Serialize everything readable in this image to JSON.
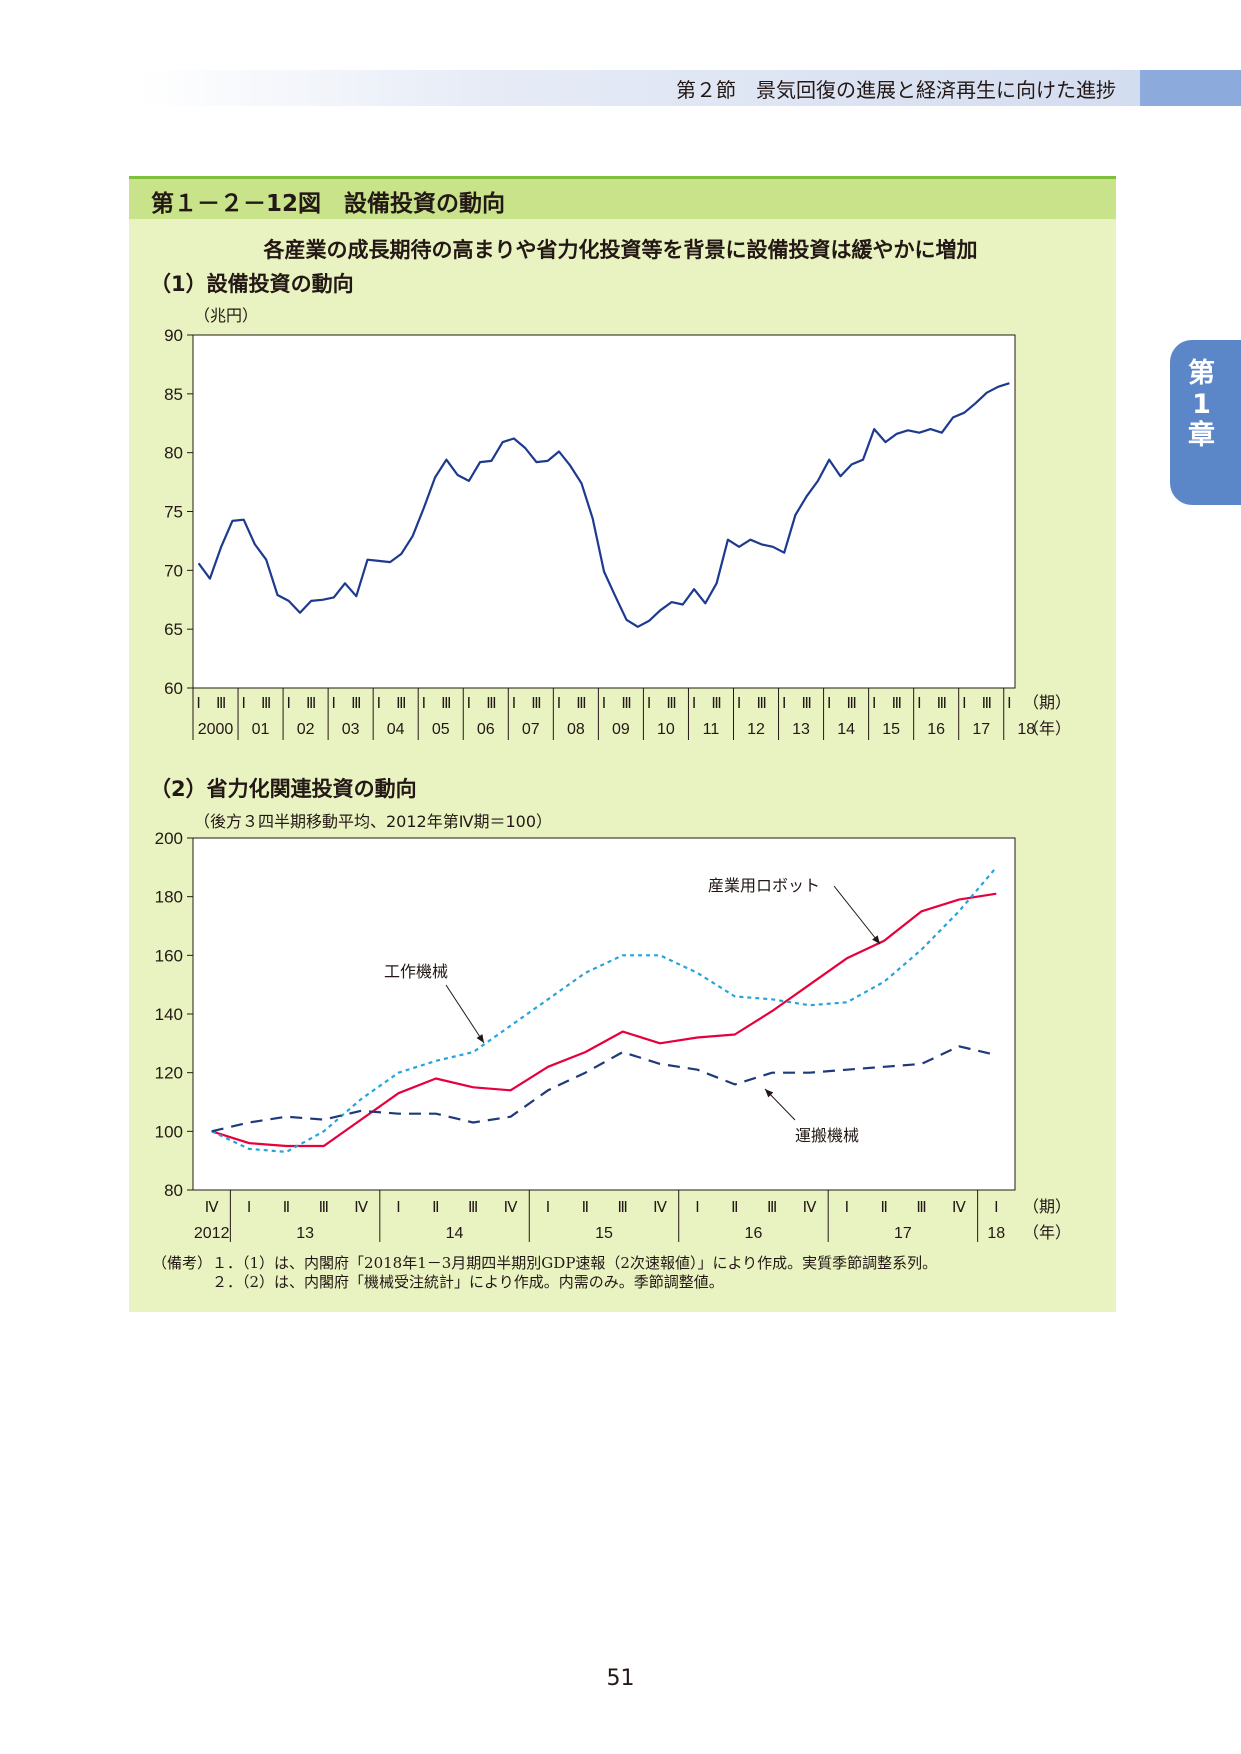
{
  "header": {
    "title": "第２節　景気回復の進展と経済再生に向けた進捗"
  },
  "chapter_tab": {
    "line1": "第",
    "line2": "1",
    "line3": "章"
  },
  "figure": {
    "title": "第１－２－12図　設備投資の動向",
    "subtitle": "各産業の成長期待の高まりや省力化投資等を背景に設備投資は緩やかに増加"
  },
  "section1": {
    "title": "（1）設備投資の動向",
    "unit": "（兆円）"
  },
  "section2": {
    "title": "（2）省力化関連投資の動向",
    "unit": "（後方３四半期移動平均、2012年第Ⅳ期＝100）"
  },
  "notes": [
    "（備考）１．（1）は、内閣府「2018年1－3月期四半期別GDP速報（2次速報値）」により作成。実質季節調整系列。",
    "　　　　２．（2）は、内閣府「機械受注統計」により作成。内需のみ。季節調整値。"
  ],
  "page_number": "51",
  "colors": {
    "blue_line": "#1d3a8f",
    "red_line": "#e6003c",
    "cyan_line": "#27a3dc",
    "navy_dash": "#1f3a7a",
    "title_band": "#c8e38a",
    "figure_bg": "#e9f3c1"
  },
  "chart_data": [
    {
      "type": "line",
      "title": "（1）設備投資の動向",
      "ylabel": "（兆円）",
      "ylim": [
        60,
        90
      ],
      "yticks": [
        60,
        65,
        70,
        75,
        80,
        85,
        90
      ],
      "x_axis_period_label": "（期）",
      "x_axis_year_label": "（年）",
      "period_ticks": [
        "Ⅰ",
        "Ⅲ"
      ],
      "years": [
        "2000",
        "01",
        "02",
        "03",
        "04",
        "05",
        "06",
        "07",
        "08",
        "09",
        "10",
        "11",
        "12",
        "13",
        "14",
        "15",
        "16",
        "17",
        "18"
      ],
      "x_start": "2000Q1",
      "series": [
        {
          "name": "",
          "values": [
            70.6,
            69.3,
            72.0,
            74.2,
            74.3,
            72.2,
            70.9,
            67.9,
            67.4,
            66.4,
            67.4,
            67.5,
            67.7,
            68.9,
            67.8,
            70.9,
            70.8,
            70.7,
            71.4,
            72.9,
            75.3,
            77.9,
            79.4,
            78.1,
            77.6,
            79.2,
            79.3,
            80.9,
            81.2,
            80.4,
            79.2,
            79.3,
            80.1,
            78.9,
            77.4,
            74.4,
            69.9,
            67.8,
            65.8,
            65.2,
            65.7,
            66.6,
            67.3,
            67.1,
            68.4,
            67.2,
            68.9,
            72.6,
            72.0,
            72.6,
            72.2,
            72.0,
            71.5,
            74.7,
            76.3,
            77.6,
            79.4,
            78.0,
            79.0,
            79.4,
            82.0,
            80.9,
            81.6,
            81.9,
            81.7,
            82.0,
            81.7,
            83.0,
            83.4,
            84.2,
            85.1,
            85.6,
            85.9
          ]
        }
      ]
    },
    {
      "type": "line",
      "title": "（2）省力化関連投資の動向",
      "ylabel": "（後方３四半期移動平均、2012年第Ⅳ期＝100）",
      "ylim": [
        80,
        200
      ],
      "yticks": [
        80,
        100,
        120,
        140,
        160,
        180,
        200
      ],
      "x_axis_period_label": "（期）",
      "x_axis_year_label": "（年）",
      "categories": [
        "Ⅳ",
        "Ⅰ",
        "Ⅱ",
        "Ⅲ",
        "Ⅳ",
        "Ⅰ",
        "Ⅱ",
        "Ⅲ",
        "Ⅳ",
        "Ⅰ",
        "Ⅱ",
        "Ⅲ",
        "Ⅳ",
        "Ⅰ",
        "Ⅱ",
        "Ⅲ",
        "Ⅳ",
        "Ⅰ",
        "Ⅱ",
        "Ⅲ",
        "Ⅳ",
        "Ⅰ"
      ],
      "years": [
        "2012",
        "13",
        "14",
        "15",
        "16",
        "17",
        "18"
      ],
      "series": [
        {
          "name": "産業用ロボット",
          "style": "solid",
          "color": "#e6003c",
          "values": [
            100,
            96,
            95,
            95,
            104,
            113,
            118,
            115,
            114,
            122,
            127,
            134,
            130,
            132,
            133,
            141,
            150,
            159,
            165,
            175,
            179,
            181
          ]
        },
        {
          "name": "工作機械",
          "style": "dotted",
          "color": "#27a3dc",
          "values": [
            100,
            94,
            93,
            100,
            111,
            120,
            124,
            127,
            136,
            145,
            154,
            160,
            160,
            154,
            146,
            145,
            143,
            144,
            151,
            162,
            175,
            190
          ]
        },
        {
          "name": "運搬機械",
          "style": "dashed",
          "color": "#1f3a7a",
          "values": [
            100,
            103,
            105,
            104,
            107,
            106,
            106,
            103,
            105,
            114,
            120,
            127,
            123,
            121,
            116,
            120,
            120,
            121,
            122,
            123,
            129,
            126
          ]
        }
      ]
    }
  ]
}
